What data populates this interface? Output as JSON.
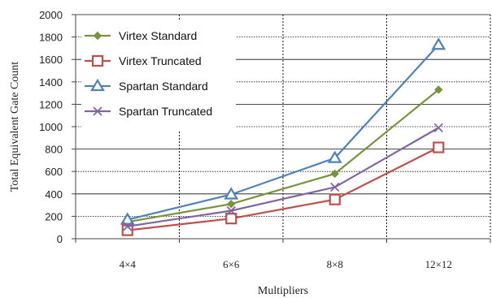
{
  "chart_data": {
    "type": "line",
    "title": "",
    "xlabel": "Multipliers",
    "ylabel": "Total Equivalent Gate Count",
    "categories": [
      "4×4",
      "6×6",
      "8×8",
      "12×12"
    ],
    "ylim": [
      0,
      2000
    ],
    "yticks": [
      0,
      200,
      400,
      600,
      800,
      1000,
      1200,
      1400,
      1600,
      1800,
      2000
    ],
    "grid": true,
    "legend_position": "top-left",
    "series": [
      {
        "name": "Virtex Standard",
        "values": [
          150,
          310,
          580,
          1330
        ],
        "color": "#77933c",
        "marker": "diamond"
      },
      {
        "name": "Virtex Truncated",
        "values": [
          75,
          180,
          350,
          815
        ],
        "color": "#c0504d",
        "marker": "square"
      },
      {
        "name": "Spartan Standard",
        "values": [
          170,
          395,
          720,
          1730
        ],
        "color": "#4f81bd",
        "marker": "triangle"
      },
      {
        "name": "Spartan Truncated",
        "values": [
          110,
          250,
          460,
          990
        ],
        "color": "#8064a2",
        "marker": "x"
      }
    ]
  }
}
